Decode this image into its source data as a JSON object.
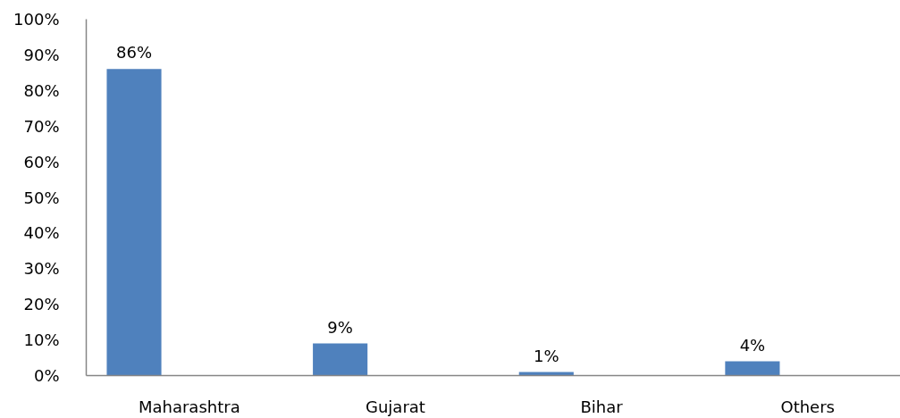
{
  "chart_data": {
    "type": "bar",
    "categories": [
      "Maharashtra",
      "Gujarat",
      "Bihar",
      "Others"
    ],
    "values": [
      86,
      9,
      1,
      4
    ],
    "color": "#4f81bd",
    "ylim": [
      0,
      100
    ],
    "yticks": [
      {
        "value": 0,
        "label": "0%"
      },
      {
        "value": 10,
        "label": "10%"
      },
      {
        "value": 20,
        "label": "20%"
      },
      {
        "value": 30,
        "label": "30%"
      },
      {
        "value": 40,
        "label": "40%"
      },
      {
        "value": 50,
        "label": "50%"
      },
      {
        "value": 60,
        "label": "60%"
      },
      {
        "value": 70,
        "label": "70%"
      },
      {
        "value": 80,
        "label": "80%"
      },
      {
        "value": 90,
        "label": "90%"
      },
      {
        "value": 100,
        "label": "100%"
      }
    ],
    "value_labels": [
      "86%",
      "9%",
      "1%",
      "4%"
    ],
    "grid": false
  }
}
